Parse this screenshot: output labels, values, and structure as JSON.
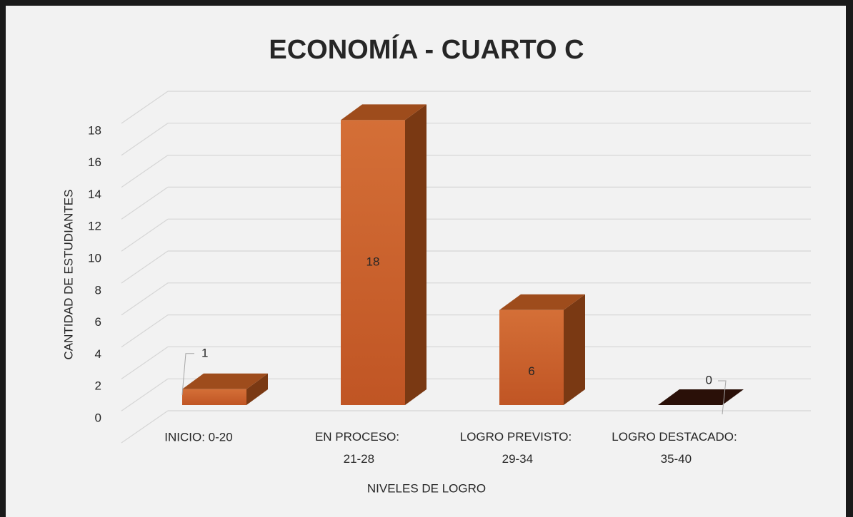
{
  "chart_data": {
    "type": "bar3d",
    "title": "ECONOMÍA - CUARTO C",
    "x_label": "NIVELES DE LOGRO",
    "y_label": "CANTIDAD DE ESTUDIANTES",
    "categories": [
      "INICIO: 0-20",
      "EN PROCESO: 21-28",
      "LOGRO PREVISTO: 29-34",
      "LOGRO DESTACADO: 35-40"
    ],
    "values": [
      1,
      18,
      6,
      0
    ],
    "color": "#c9612b",
    "ylim": [
      0,
      20
    ],
    "yticks": [
      0,
      2,
      4,
      6,
      8,
      10,
      12,
      14,
      16,
      18
    ],
    "grid": true
  }
}
